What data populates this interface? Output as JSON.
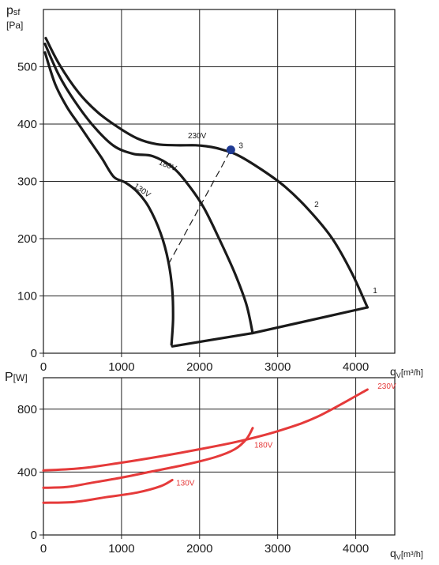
{
  "chart_data": [
    {
      "type": "line",
      "ylabel_main": "p",
      "ylabel_sub": "sf",
      "ylabel_unit": "[Pa]",
      "xlabel_main": "q",
      "xlabel_sub": "V",
      "xlabel_unit": "[m³/h]",
      "xlim": [
        0,
        4500
      ],
      "ylim": [
        0,
        600
      ],
      "xticks": [
        "0",
        "1000",
        "2000",
        "3000",
        "4000"
      ],
      "yticks": [
        "0",
        "100",
        "200",
        "300",
        "400",
        "500"
      ],
      "grid": true,
      "curve_color": "#1a1a1a",
      "series": [
        {
          "name": "230V",
          "label_at": [
            1850,
            375
          ],
          "points": [
            [
              30,
              550
            ],
            [
              200,
              505
            ],
            [
              450,
              455
            ],
            [
              700,
              420
            ],
            [
              950,
              395
            ],
            [
              1200,
              375
            ],
            [
              1450,
              365
            ],
            [
              1700,
              363
            ],
            [
              1950,
              363
            ],
            [
              2150,
              360
            ],
            [
              2300,
              355
            ],
            [
              2500,
              345
            ],
            [
              2800,
              320
            ],
            [
              3100,
              290
            ],
            [
              3400,
              250
            ],
            [
              3700,
              200
            ],
            [
              3950,
              140
            ],
            [
              4150,
              80
            ]
          ]
        },
        {
          "name": "180V",
          "label_at": [
            1470,
            330
          ],
          "points": [
            [
              20,
              540
            ],
            [
              200,
              485
            ],
            [
              400,
              440
            ],
            [
              650,
              395
            ],
            [
              900,
              362
            ],
            [
              1150,
              348
            ],
            [
              1400,
              344
            ],
            [
              1650,
              325
            ],
            [
              1850,
              295
            ],
            [
              2050,
              255
            ],
            [
              2250,
              200
            ],
            [
              2450,
              140
            ],
            [
              2600,
              85
            ],
            [
              2680,
              35
            ]
          ]
        },
        {
          "name": "130V",
          "label_at": [
            1150,
            290
          ],
          "points": [
            [
              20,
              525
            ],
            [
              150,
              470
            ],
            [
              300,
              430
            ],
            [
              450,
              400
            ],
            [
              600,
              370
            ],
            [
              750,
              340
            ],
            [
              900,
              308
            ],
            [
              1050,
              298
            ],
            [
              1200,
              282
            ],
            [
              1350,
              255
            ],
            [
              1500,
              210
            ],
            [
              1600,
              160
            ],
            [
              1650,
              110
            ],
            [
              1660,
              60
            ],
            [
              1640,
              15
            ]
          ]
        },
        {
          "name": "",
          "label_at": null,
          "points": [
            [
              1650,
              12
            ],
            [
              2680,
              35
            ],
            [
              4150,
              80
            ]
          ]
        }
      ],
      "dashed_points": [
        [
          1600,
          155
        ],
        [
          2400,
          355
        ]
      ],
      "marker": {
        "x": 2400,
        "y": 355,
        "color": "#1f3a93",
        "label": "3"
      },
      "point_labels": [
        {
          "text": "1",
          "x": 4220,
          "y": 105
        },
        {
          "text": "2",
          "x": 3470,
          "y": 255
        }
      ]
    },
    {
      "type": "line",
      "ylabel": "P",
      "ylabel_unit": "[W]",
      "xlabel_main": "q",
      "xlabel_sub": "V",
      "xlabel_unit": "[m³/h]",
      "xlim": [
        0,
        4500
      ],
      "ylim": [
        0,
        1000
      ],
      "xticks": [
        "0",
        "1000",
        "2000",
        "3000",
        "4000"
      ],
      "yticks": [
        "0",
        "400",
        "800"
      ],
      "grid": true,
      "curve_color": "#e53a3a",
      "series": [
        {
          "name": "230V",
          "label_at": [
            4280,
            930
          ],
          "points": [
            [
              0,
              410
            ],
            [
              500,
              425
            ],
            [
              1000,
              460
            ],
            [
              1500,
              500
            ],
            [
              2000,
              545
            ],
            [
              2500,
              595
            ],
            [
              3000,
              660
            ],
            [
              3500,
              750
            ],
            [
              4150,
              925
            ]
          ]
        },
        {
          "name": "180V",
          "label_at": [
            2700,
            555
          ],
          "points": [
            [
              0,
              300
            ],
            [
              300,
              305
            ],
            [
              600,
              330
            ],
            [
              1000,
              365
            ],
            [
              1400,
              405
            ],
            [
              1800,
              445
            ],
            [
              2200,
              495
            ],
            [
              2450,
              545
            ],
            [
              2600,
              610
            ],
            [
              2680,
              680
            ]
          ]
        },
        {
          "name": "130V",
          "label_at": [
            1700,
            315
          ],
          "points": [
            [
              0,
              205
            ],
            [
              400,
              210
            ],
            [
              800,
              240
            ],
            [
              1200,
              270
            ],
            [
              1500,
              310
            ],
            [
              1650,
              350
            ]
          ]
        }
      ]
    }
  ]
}
